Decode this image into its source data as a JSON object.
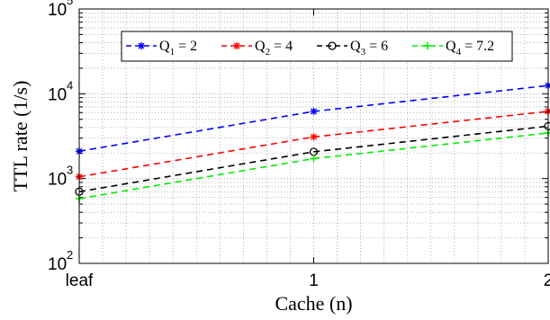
{
  "chart_data": {
    "type": "line",
    "xlabel": "Cache (n)",
    "ylabel": "TTL rate (1/s)",
    "x": [
      0,
      1,
      2
    ],
    "x_tick_labels": [
      "leaf",
      "1",
      "2"
    ],
    "xlim": [
      0,
      2
    ],
    "y_scale": "log",
    "ylim": [
      100,
      100000
    ],
    "y_ticks": [
      {
        "base": "10",
        "exp": "2"
      },
      {
        "base": "10",
        "exp": "3"
      },
      {
        "base": "10",
        "exp": "4"
      },
      {
        "base": "10",
        "exp": "5"
      }
    ],
    "grid": true,
    "legend_position": "top",
    "series": [
      {
        "q": "Q",
        "sub": "1",
        "rest": " = 2",
        "color": "#0000ff",
        "marker": "asterisk",
        "values": [
          2100,
          6200,
          12500
        ]
      },
      {
        "q": "Q",
        "sub": "2",
        "rest": " = 4",
        "color": "#ff0000",
        "marker": "asterisk",
        "values": [
          1050,
          3100,
          6200
        ]
      },
      {
        "q": "Q",
        "sub": "3",
        "rest": " = 6",
        "color": "#000000",
        "marker": "circle",
        "values": [
          700,
          2070,
          4150
        ]
      },
      {
        "q": "Q",
        "sub": "4",
        "rest": " = 7.2",
        "color": "#00ee00",
        "marker": "plus",
        "values": [
          580,
          1720,
          3450
        ]
      }
    ]
  }
}
